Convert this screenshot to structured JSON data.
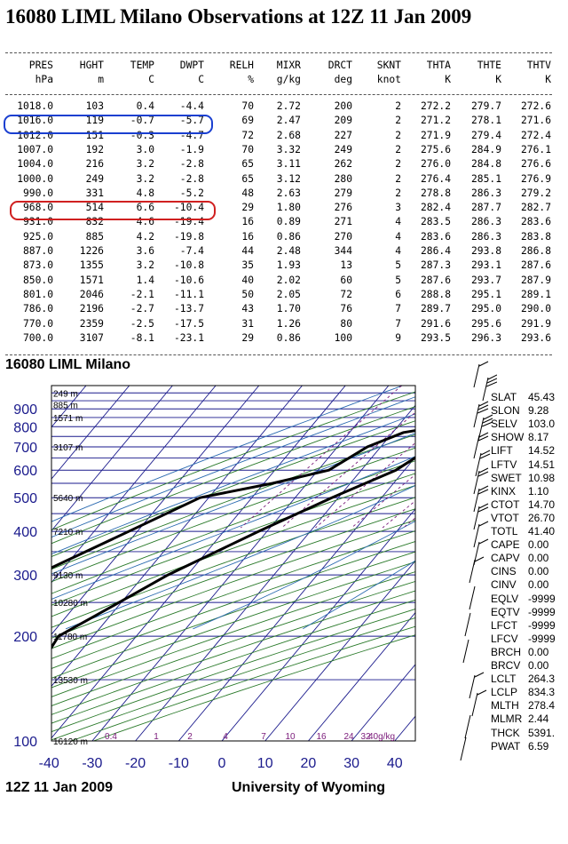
{
  "title": "16080 LIML Milano Observations at 12Z 11 Jan 2009",
  "table": {
    "headers": [
      "PRES",
      "HGHT",
      "TEMP",
      "DWPT",
      "RELH",
      "MIXR",
      "DRCT",
      "SKNT",
      "THTA",
      "THTE",
      "THTV"
    ],
    "units": [
      "hPa",
      "m",
      "C",
      "C",
      "%",
      "g/kg",
      "deg",
      "knot",
      "K",
      "K",
      "K"
    ],
    "rows": [
      [
        "1018.0",
        "103",
        "0.4",
        "-4.4",
        "70",
        "2.72",
        "200",
        "2",
        "272.2",
        "279.7",
        "272.6"
      ],
      [
        "1016.0",
        "119",
        "-0.7",
        "-5.7",
        "69",
        "2.47",
        "209",
        "2",
        "271.2",
        "278.1",
        "271.6"
      ],
      [
        "1012.0",
        "151",
        "-0.3",
        "-4.7",
        "72",
        "2.68",
        "227",
        "2",
        "271.9",
        "279.4",
        "272.4"
      ],
      [
        "1007.0",
        "192",
        "3.0",
        "-1.9",
        "70",
        "3.32",
        "249",
        "2",
        "275.6",
        "284.9",
        "276.1"
      ],
      [
        "1004.0",
        "216",
        "3.2",
        "-2.8",
        "65",
        "3.11",
        "262",
        "2",
        "276.0",
        "284.8",
        "276.6"
      ],
      [
        "1000.0",
        "249",
        "3.2",
        "-2.8",
        "65",
        "3.12",
        "280",
        "2",
        "276.4",
        "285.1",
        "276.9"
      ],
      [
        "990.0",
        "331",
        "4.8",
        "-5.2",
        "48",
        "2.63",
        "279",
        "2",
        "278.8",
        "286.3",
        "279.2"
      ],
      [
        "968.0",
        "514",
        "6.6",
        "-10.4",
        "29",
        "1.80",
        "276",
        "3",
        "282.4",
        "287.7",
        "282.7"
      ],
      [
        "931.0",
        "832",
        "4.6",
        "-19.4",
        "16",
        "0.89",
        "271",
        "4",
        "283.5",
        "286.3",
        "283.6"
      ],
      [
        "925.0",
        "885",
        "4.2",
        "-19.8",
        "16",
        "0.86",
        "270",
        "4",
        "283.6",
        "286.3",
        "283.8"
      ],
      [
        "887.0",
        "1226",
        "3.6",
        "-7.4",
        "44",
        "2.48",
        "344",
        "4",
        "286.4",
        "293.8",
        "286.8"
      ],
      [
        "873.0",
        "1355",
        "3.2",
        "-10.8",
        "35",
        "1.93",
        "13",
        "5",
        "287.3",
        "293.1",
        "287.6"
      ],
      [
        "850.0",
        "1571",
        "1.4",
        "-10.6",
        "40",
        "2.02",
        "60",
        "5",
        "287.6",
        "293.7",
        "287.9"
      ],
      [
        "801.0",
        "2046",
        "-2.1",
        "-11.1",
        "50",
        "2.05",
        "72",
        "6",
        "288.8",
        "295.1",
        "289.1"
      ],
      [
        "786.0",
        "2196",
        "-2.7",
        "-13.7",
        "43",
        "1.70",
        "76",
        "7",
        "289.7",
        "295.0",
        "290.0"
      ],
      [
        "770.0",
        "2359",
        "-2.5",
        "-17.5",
        "31",
        "1.26",
        "80",
        "7",
        "291.6",
        "295.6",
        "291.9"
      ],
      [
        "700.0",
        "3107",
        "-8.1",
        "-23.1",
        "29",
        "0.86",
        "100",
        "9",
        "293.5",
        "296.3",
        "293.6"
      ]
    ]
  },
  "skewt": {
    "station_title": "16080 LIML Milano",
    "footer_left": "12Z 11 Jan 2009",
    "footer_right": "University of Wyoming",
    "pressure_labels": [
      "100",
      "200",
      "300",
      "400",
      "500",
      "600",
      "700",
      "800",
      "900"
    ],
    "temp_labels": [
      "-40",
      "-30",
      "-20",
      "-10",
      "0",
      "10",
      "20",
      "30",
      "40"
    ],
    "height_labels": [
      "16120 m",
      "13530 m",
      "11780 m",
      "10280 m",
      "9130 m",
      "7210 m",
      "5640 m",
      "3107 m",
      "1571 m",
      "885 m",
      "249 m"
    ],
    "mixr_labels": [
      "0.4",
      "1",
      "2",
      "4",
      "7",
      "10",
      "16",
      "24",
      "32",
      "40g/kg"
    ]
  },
  "indices": [
    [
      "SLAT",
      "45.43"
    ],
    [
      "SLON",
      "9.28"
    ],
    [
      "SELV",
      "103.0"
    ],
    [
      "SHOW",
      "8.17"
    ],
    [
      "LIFT",
      "14.52"
    ],
    [
      "LFTV",
      "14.51"
    ],
    [
      "SWET",
      "10.98"
    ],
    [
      "KINX",
      "1.10"
    ],
    [
      "CTOT",
      "14.70"
    ],
    [
      "VTOT",
      "26.70"
    ],
    [
      "TOTL",
      "41.40"
    ],
    [
      "CAPE",
      "0.00"
    ],
    [
      "CAPV",
      "0.00"
    ],
    [
      "CINS",
      "0.00"
    ],
    [
      "CINV",
      "0.00"
    ],
    [
      "EQLV",
      "-9999"
    ],
    [
      "EQTV",
      "-9999"
    ],
    [
      "LFCT",
      "-9999"
    ],
    [
      "LFCV",
      "-9999"
    ],
    [
      "BRCH",
      "0.00"
    ],
    [
      "BRCV",
      "0.00"
    ],
    [
      "LCLT",
      "264.3"
    ],
    [
      "LCLP",
      "834.3"
    ],
    [
      "MLTH",
      "278.4"
    ],
    [
      "MLMR",
      "2.44"
    ],
    [
      "THCK",
      "5391."
    ],
    [
      "PWAT",
      "6.59"
    ]
  ],
  "colors": {
    "frame": "#000000",
    "isobar": "#1a1a8c",
    "isotherm": "#1a1a8c",
    "dry_adiabat": "#2a7a2a",
    "moist_adiabat": "#2a6ab0",
    "mixing_ratio": "#7a1a7a",
    "axis_labels": "#1a1a8c",
    "highlight_blue": "#1a3fd0",
    "highlight_red": "#d02020"
  },
  "chart_data": {
    "type": "line",
    "title": "16080 LIML Milano",
    "xlabel": "",
    "ylabel": "",
    "xlim": [
      -40,
      45
    ],
    "ylim": [
      1050,
      100
    ],
    "y_scale": "log",
    "series": [
      {
        "name": "",
        "role": "temperature",
        "points": [
          [
            1018,
            0.4
          ],
          [
            1016,
            -0.7
          ],
          [
            1012,
            -0.3
          ],
          [
            1007,
            3.0
          ],
          [
            1004,
            3.2
          ],
          [
            1000,
            3.2
          ],
          [
            990,
            4.8
          ],
          [
            968,
            6.6
          ],
          [
            931,
            4.6
          ],
          [
            925,
            4.2
          ],
          [
            887,
            3.6
          ],
          [
            873,
            3.2
          ],
          [
            850,
            1.4
          ],
          [
            801,
            -2.1
          ],
          [
            786,
            -2.7
          ],
          [
            770,
            -2.5
          ],
          [
            700,
            -8.1
          ],
          [
            600,
            -12.0
          ],
          [
            500,
            -21.5
          ],
          [
            400,
            -32.0
          ],
          [
            300,
            -44.5
          ],
          [
            250,
            -50.5
          ],
          [
            200,
            -58.0
          ],
          [
            150,
            -56.0
          ],
          [
            100,
            -63.0
          ]
        ]
      },
      {
        "name": "",
        "role": "dewpoint",
        "points": [
          [
            1018,
            -4.4
          ],
          [
            1016,
            -5.7
          ],
          [
            1012,
            -4.7
          ],
          [
            1007,
            -1.9
          ],
          [
            1004,
            -2.8
          ],
          [
            1000,
            -2.8
          ],
          [
            990,
            -5.2
          ],
          [
            968,
            -10.4
          ],
          [
            931,
            -19.4
          ],
          [
            925,
            -19.8
          ],
          [
            887,
            -7.4
          ],
          [
            873,
            -10.8
          ],
          [
            850,
            -10.6
          ],
          [
            801,
            -11.1
          ],
          [
            786,
            -13.7
          ],
          [
            770,
            -17.5
          ],
          [
            700,
            -23.1
          ],
          [
            600,
            -27.5
          ],
          [
            550,
            -38.0
          ],
          [
            500,
            -52.0
          ],
          [
            400,
            -62.0
          ],
          [
            300,
            -75.0
          ],
          [
            250,
            -85.0
          ],
          [
            200,
            -90.0
          ],
          [
            150,
            -95.0
          ],
          [
            100,
            -100.0
          ]
        ]
      }
    ]
  }
}
